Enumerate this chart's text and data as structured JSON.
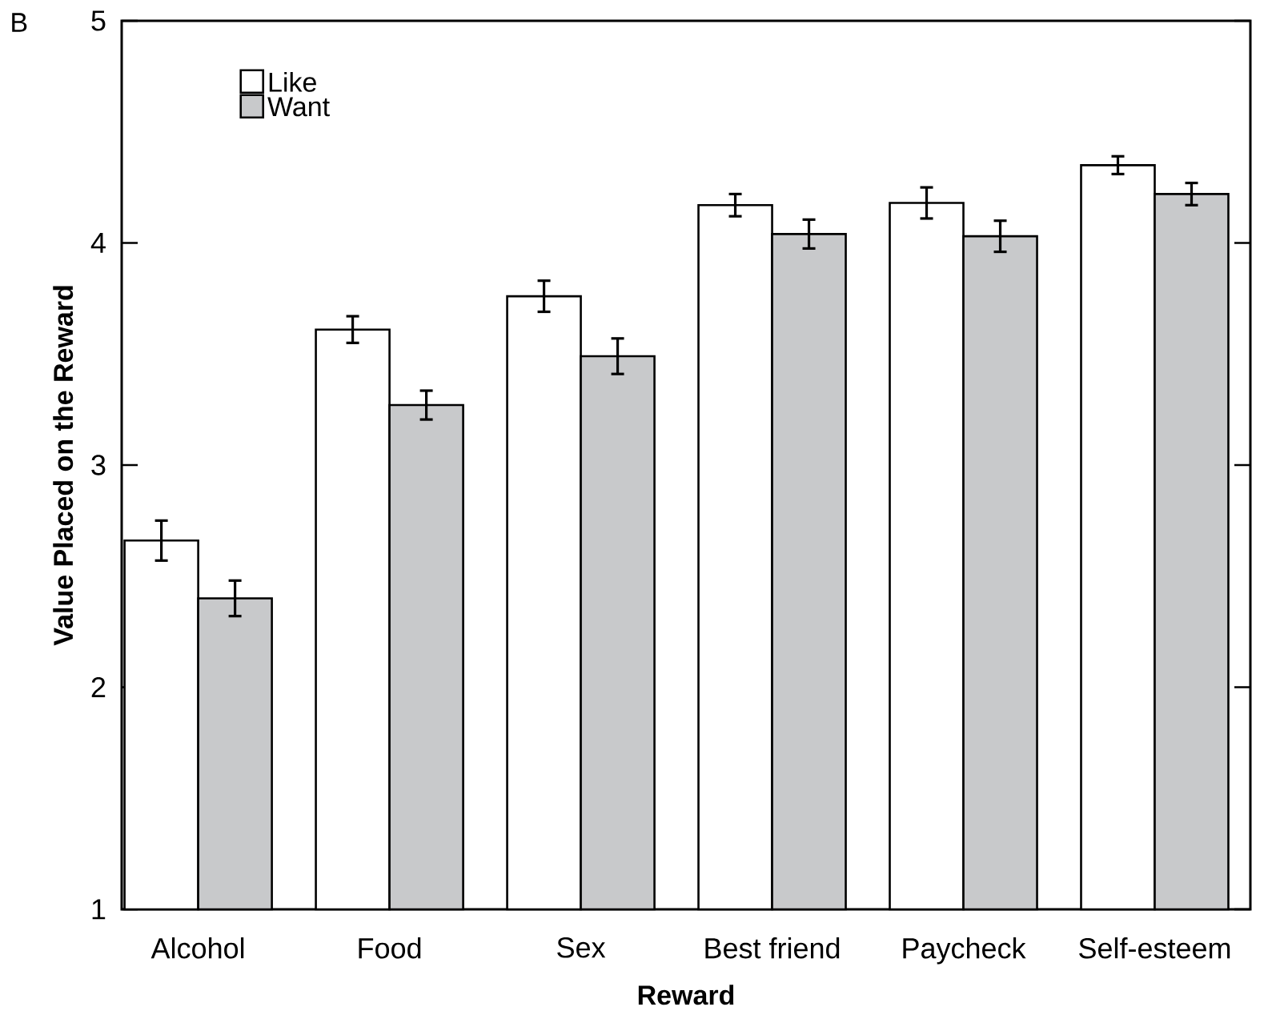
{
  "chart_data": {
    "type": "bar",
    "annotations": [
      "B"
    ],
    "xlabel": "Reward",
    "ylabel": "Value Placed on the Reward",
    "categories": [
      "Alcohol",
      "Food",
      "Sex",
      "Best friend",
      "Paycheck",
      "Self-esteem"
    ],
    "series": [
      {
        "name": "Like",
        "color": "#ffffff",
        "values": [
          2.66,
          3.61,
          3.76,
          4.17,
          4.18,
          4.35
        ],
        "errors": [
          0.09,
          0.06,
          0.07,
          0.05,
          0.07,
          0.04
        ]
      },
      {
        "name": "Want",
        "color": "#c8c9cb",
        "values": [
          2.4,
          3.27,
          3.49,
          4.04,
          4.03,
          4.22
        ],
        "errors": [
          0.08,
          0.065,
          0.08,
          0.065,
          0.07,
          0.05
        ]
      }
    ],
    "ylim": [
      1,
      5
    ],
    "yticks": [
      1,
      2,
      3,
      4,
      5
    ],
    "legend": "top left"
  }
}
